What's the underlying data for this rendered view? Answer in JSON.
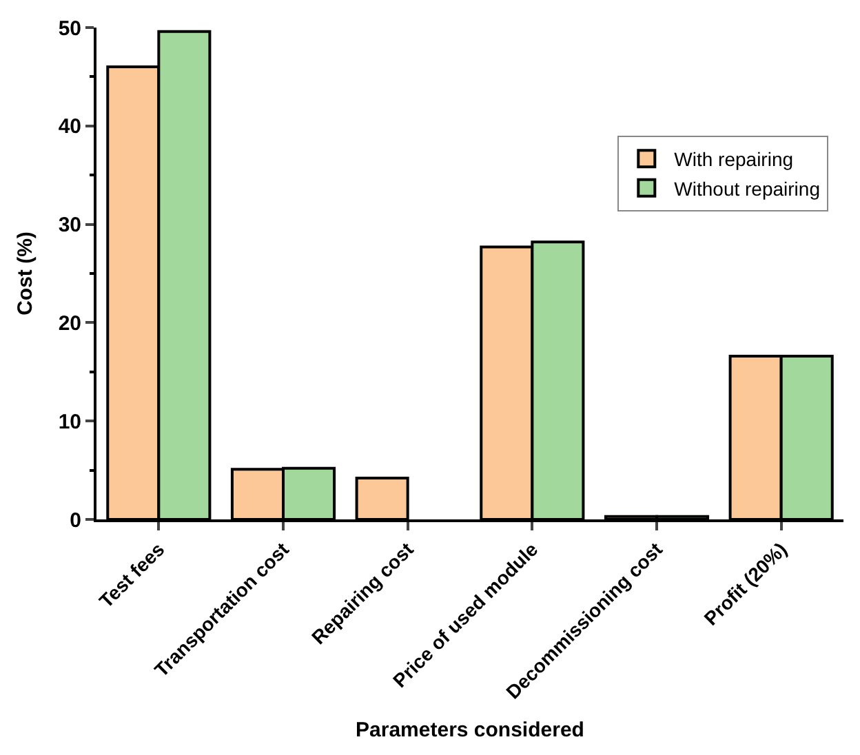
{
  "chart_data": {
    "type": "bar",
    "xlabel": "Parameters considered",
    "ylabel": "Cost (%)",
    "categories": [
      "Test fees",
      "Transportation cost",
      "Repairing cost",
      "Price of used module",
      "Decommissioning cost",
      "Profit (20%)"
    ],
    "series": [
      {
        "name": "With repairing",
        "color": "#fdc897",
        "values": [
          46.0,
          5.1,
          4.2,
          27.7,
          0.3,
          16.6
        ]
      },
      {
        "name": "Without repairing",
        "color": "#a3d89c",
        "values": [
          49.6,
          5.2,
          null,
          28.2,
          0.3,
          16.6
        ]
      }
    ],
    "ylim": [
      0,
      50
    ],
    "yticks": [
      0,
      10,
      20,
      30,
      40,
      50
    ],
    "legend": "top right"
  }
}
